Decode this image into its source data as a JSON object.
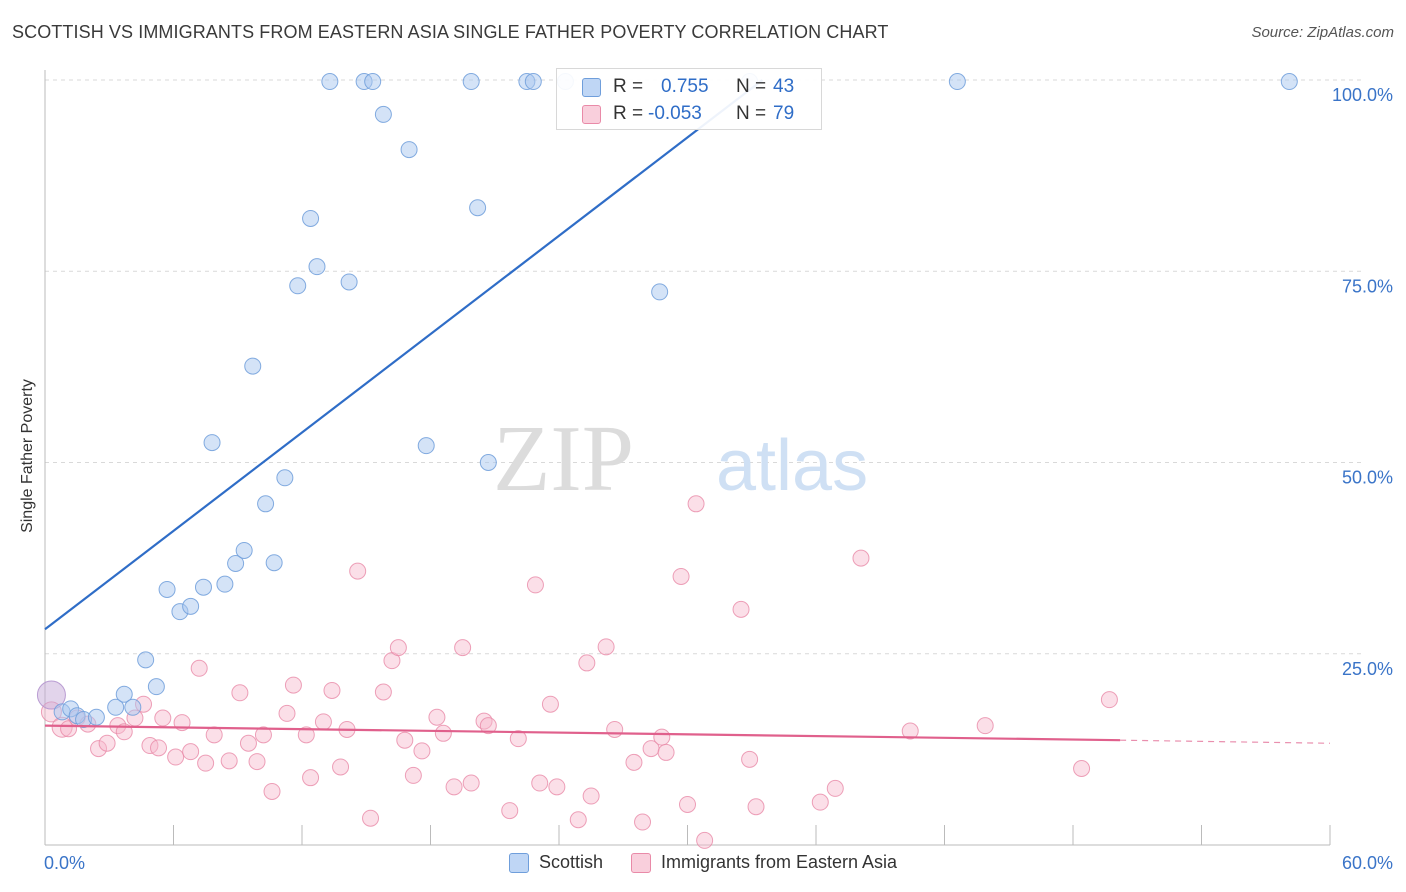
{
  "title": "SCOTTISH VS IMMIGRANTS FROM EASTERN ASIA SINGLE FATHER POVERTY CORRELATION CHART",
  "source": "Source: ZipAtlas.com",
  "watermark": {
    "part1": "ZIP",
    "part2": "atlas"
  },
  "colors": {
    "blue_fill": "#a9c8f0",
    "blue_stroke": "#6f9edb",
    "blue_line": "#2f6dc7",
    "pink_fill": "#f6b8cb",
    "pink_stroke": "#e98aa8",
    "pink_line": "#e0608c",
    "axis_label": "#3a74c8",
    "grid": "#d9d9d9"
  },
  "legend_box": {
    "rows": [
      {
        "r_label": "R =",
        "r_value": "0.755",
        "n_label": "N =",
        "n_value": "43"
      },
      {
        "r_label": "R =",
        "r_value": "-0.053",
        "n_label": "N =",
        "n_value": "79"
      }
    ]
  },
  "chart_data": {
    "type": "scatter",
    "title": "SCOTTISH VS IMMIGRANTS FROM EASTERN ASIA SINGLE FATHER POVERTY CORRELATION CHART",
    "xlabel": "",
    "ylabel": "Single Father Poverty",
    "xlim": [
      0,
      60
    ],
    "ylim": [
      0,
      102
    ],
    "x_tick_labels": [
      "0.0%",
      "60.0%"
    ],
    "y_ticks": [
      25,
      50,
      75,
      100
    ],
    "y_tick_labels": [
      "25.0%",
      "50.0%",
      "75.0%",
      "100.0%"
    ],
    "grid": true,
    "legend": "bottom-center",
    "series": [
      {
        "name": "Scottish",
        "trend": {
          "x": [
            0,
            33.5
          ],
          "y": [
            28.2,
            100
          ]
        },
        "points": [
          [
            0.3,
            19.6
          ],
          [
            0.8,
            17.4
          ],
          [
            1.2,
            17.8
          ],
          [
            1.5,
            16.9
          ],
          [
            1.8,
            16.4
          ],
          [
            2.4,
            16.7
          ],
          [
            3.3,
            18.0
          ],
          [
            3.7,
            19.7
          ],
          [
            4.1,
            18.0
          ],
          [
            4.7,
            24.2
          ],
          [
            5.2,
            20.7
          ],
          [
            5.7,
            33.4
          ],
          [
            6.3,
            30.5
          ],
          [
            6.8,
            31.2
          ],
          [
            7.4,
            33.7
          ],
          [
            7.8,
            52.6
          ],
          [
            8.4,
            34.1
          ],
          [
            8.9,
            36.8
          ],
          [
            9.3,
            38.5
          ],
          [
            9.7,
            62.6
          ],
          [
            10.3,
            44.6
          ],
          [
            10.7,
            36.9
          ],
          [
            11.2,
            48.0
          ],
          [
            11.8,
            73.1
          ],
          [
            12.4,
            81.9
          ],
          [
            12.7,
            75.6
          ],
          [
            14.2,
            73.6
          ],
          [
            13.3,
            99.8
          ],
          [
            14.9,
            99.8
          ],
          [
            15.3,
            99.8
          ],
          [
            15.8,
            95.5
          ],
          [
            17.0,
            90.9
          ],
          [
            17.8,
            52.2
          ],
          [
            19.9,
            99.8
          ],
          [
            20.2,
            83.3
          ],
          [
            20.7,
            50.0
          ],
          [
            22.5,
            99.8
          ],
          [
            22.8,
            99.8
          ],
          [
            24.3,
            99.8
          ],
          [
            28.7,
            72.3
          ],
          [
            32.9,
            99.8
          ],
          [
            42.6,
            99.8
          ],
          [
            58.1,
            99.8
          ]
        ]
      },
      {
        "name": "Immigrants from Eastern Asia",
        "trend": {
          "x": [
            0,
            50.2
          ],
          "y": [
            15.6,
            13.7
          ]
        },
        "trend_extension": {
          "x": [
            50.2,
            60
          ],
          "y": [
            13.7,
            13.3
          ]
        },
        "points": [
          [
            0.3,
            17.4
          ],
          [
            0.8,
            15.4
          ],
          [
            1.1,
            15.2
          ],
          [
            1.5,
            16.6
          ],
          [
            2.0,
            15.8
          ],
          [
            2.5,
            12.6
          ],
          [
            2.9,
            13.3
          ],
          [
            3.4,
            15.6
          ],
          [
            3.7,
            14.8
          ],
          [
            4.2,
            16.6
          ],
          [
            4.6,
            18.4
          ],
          [
            4.9,
            13.0
          ],
          [
            5.3,
            12.7
          ],
          [
            5.5,
            16.6
          ],
          [
            6.1,
            11.5
          ],
          [
            6.4,
            16.0
          ],
          [
            6.8,
            12.2
          ],
          [
            7.2,
            23.1
          ],
          [
            7.5,
            10.7
          ],
          [
            7.9,
            14.4
          ],
          [
            8.6,
            11.0
          ],
          [
            9.1,
            19.9
          ],
          [
            9.5,
            13.3
          ],
          [
            9.9,
            10.9
          ],
          [
            10.2,
            14.4
          ],
          [
            10.6,
            7.0
          ],
          [
            11.3,
            17.2
          ],
          [
            11.6,
            20.9
          ],
          [
            12.2,
            14.4
          ],
          [
            12.4,
            8.8
          ],
          [
            13.0,
            16.1
          ],
          [
            13.4,
            20.2
          ],
          [
            13.8,
            10.2
          ],
          [
            14.1,
            15.1
          ],
          [
            14.6,
            35.8
          ],
          [
            15.2,
            3.5
          ],
          [
            15.8,
            20.0
          ],
          [
            16.2,
            24.1
          ],
          [
            16.5,
            25.8
          ],
          [
            16.8,
            13.7
          ],
          [
            17.2,
            9.1
          ],
          [
            17.6,
            12.3
          ],
          [
            18.3,
            16.7
          ],
          [
            18.6,
            14.6
          ],
          [
            19.1,
            7.6
          ],
          [
            19.5,
            25.8
          ],
          [
            19.9,
            8.1
          ],
          [
            20.5,
            16.2
          ],
          [
            20.7,
            15.6
          ],
          [
            21.7,
            4.5
          ],
          [
            22.1,
            13.9
          ],
          [
            22.9,
            34.0
          ],
          [
            23.1,
            8.1
          ],
          [
            23.6,
            18.4
          ],
          [
            23.9,
            7.6
          ],
          [
            24.9,
            3.3
          ],
          [
            25.3,
            23.8
          ],
          [
            25.5,
            6.4
          ],
          [
            26.2,
            25.9
          ],
          [
            26.6,
            15.1
          ],
          [
            27.5,
            10.8
          ],
          [
            27.9,
            3.0
          ],
          [
            28.3,
            12.6
          ],
          [
            28.8,
            14.1
          ],
          [
            29.0,
            12.1
          ],
          [
            29.7,
            35.1
          ],
          [
            30.0,
            5.3
          ],
          [
            30.4,
            44.6
          ],
          [
            30.8,
            0.6
          ],
          [
            32.5,
            30.8
          ],
          [
            32.9,
            11.2
          ],
          [
            33.2,
            5.0
          ],
          [
            36.2,
            5.6
          ],
          [
            36.9,
            7.4
          ],
          [
            38.1,
            37.5
          ],
          [
            40.4,
            14.9
          ],
          [
            43.9,
            15.6
          ],
          [
            48.4,
            10.0
          ],
          [
            49.7,
            19.0
          ]
        ]
      }
    ]
  }
}
